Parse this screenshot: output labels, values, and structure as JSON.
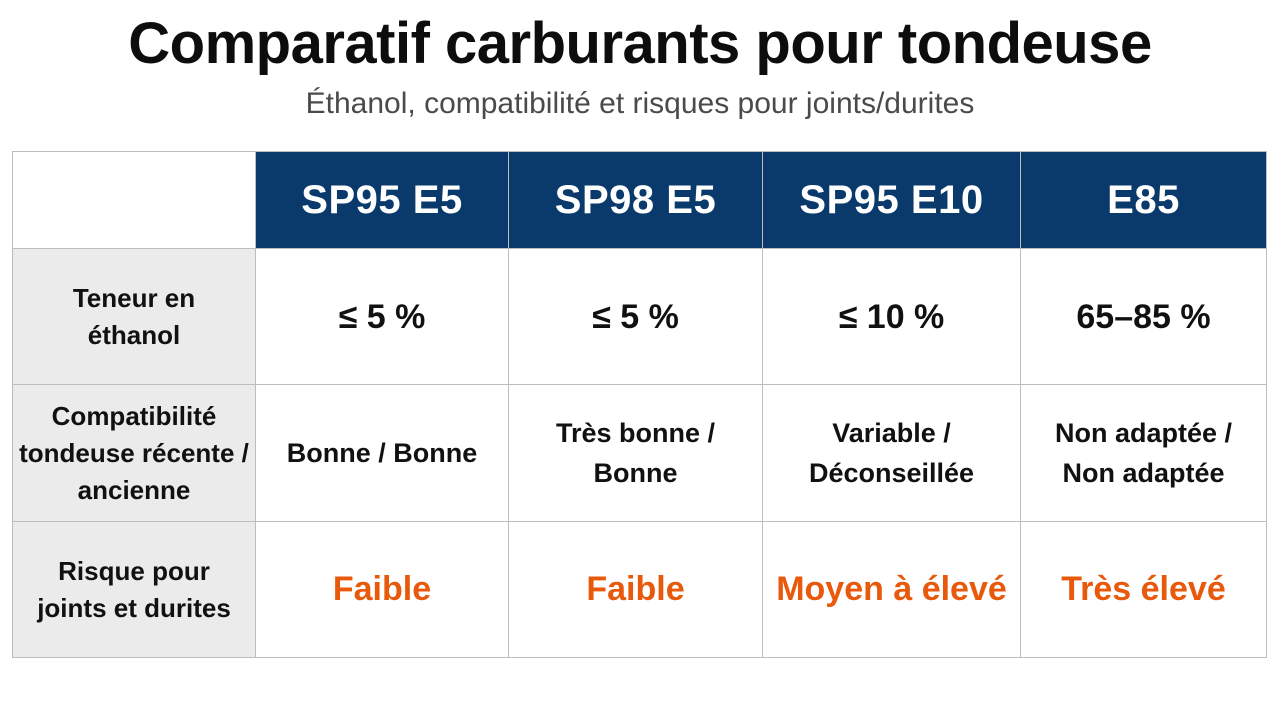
{
  "header": {
    "title": "Comparatif carburants pour tondeuse",
    "subtitle": "Éthanol, compatibilité et risques pour joints/durites"
  },
  "table": {
    "columns": [
      "SP95 E5",
      "SP98 E5",
      "SP95 E10",
      "E85"
    ],
    "rows": [
      {
        "label": "Teneur en éthanol",
        "values": [
          "≤ 5 %",
          "≤ 5 %",
          "≤ 10 %",
          "65–85 %"
        ]
      },
      {
        "label": "Compatibilité tondeuse récente / ancienne",
        "values": [
          "Bonne / Bonne",
          "Très bonne / Bonne",
          "Variable / Déconseillée",
          "Non adaptée / Non adaptée"
        ]
      },
      {
        "label": "Risque pour joints et durites",
        "values": [
          "Faible",
          "Faible",
          "Moyen à élevé",
          "Très élevé"
        ]
      }
    ]
  },
  "colors": {
    "header_bg": "#0a3a6b",
    "risk_text": "#e8590c",
    "row_label_bg": "#ebebeb"
  }
}
